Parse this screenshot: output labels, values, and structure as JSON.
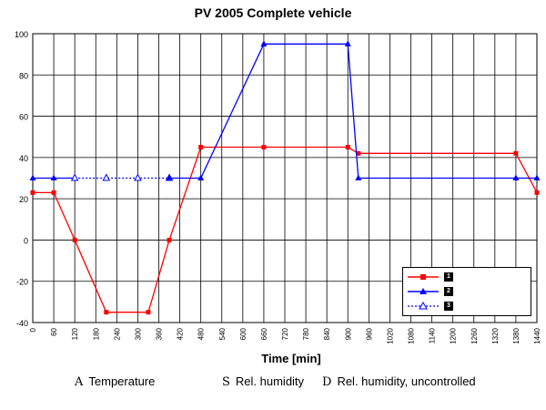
{
  "chart_data": {
    "type": "line",
    "title": "PV 2005 Complete vehicle",
    "xlabel": "Time [min]",
    "ylabel": "",
    "xlim": [
      0,
      1440
    ],
    "ylim": [
      -40,
      100
    ],
    "x_ticks": [
      0,
      60,
      120,
      180,
      240,
      300,
      360,
      420,
      480,
      540,
      600,
      660,
      720,
      780,
      840,
      900,
      960,
      1020,
      1080,
      1140,
      1200,
      1260,
      1320,
      1380,
      1440
    ],
    "y_ticks": [
      100,
      80,
      60,
      40,
      20,
      0,
      -20,
      -40
    ],
    "grid": true,
    "legend_position": "bottom-right",
    "series": [
      {
        "name": "1",
        "color": "#ff0000",
        "marker": "square",
        "line": "solid",
        "points": [
          [
            0,
            23
          ],
          [
            60,
            23
          ],
          [
            120,
            0
          ],
          [
            210,
            -35
          ],
          [
            330,
            -35
          ],
          [
            390,
            0
          ],
          [
            480,
            45
          ],
          [
            660,
            45
          ],
          [
            900,
            45
          ],
          [
            930,
            42
          ],
          [
            1380,
            42
          ],
          [
            1440,
            23
          ]
        ]
      },
      {
        "name": "2",
        "color": "#0000ff",
        "marker": "triangle",
        "line": "solid",
        "points": [
          [
            0,
            30
          ],
          [
            60,
            30
          ],
          [
            120,
            30
          ]
        ]
      },
      {
        "name": "3",
        "color": "#0000ff",
        "marker": "triangle-open",
        "line": "dotted",
        "points": [
          [
            120,
            30
          ],
          [
            210,
            30
          ],
          [
            300,
            30
          ],
          [
            390,
            30
          ]
        ]
      },
      {
        "name": "2",
        "color": "#0000ff",
        "marker": "triangle",
        "line": "solid",
        "points": [
          [
            390,
            30
          ],
          [
            480,
            30
          ],
          [
            660,
            95
          ],
          [
            900,
            95
          ],
          [
            930,
            30
          ],
          [
            1380,
            30
          ],
          [
            1440,
            30
          ]
        ],
        "legend": false
      }
    ]
  },
  "footnotes": [
    {
      "key": "A",
      "text": "Temperature"
    },
    {
      "key": "S",
      "text": "Rel. humidity"
    },
    {
      "key": "D",
      "text": "Rel. humidity, uncontrolled"
    }
  ]
}
